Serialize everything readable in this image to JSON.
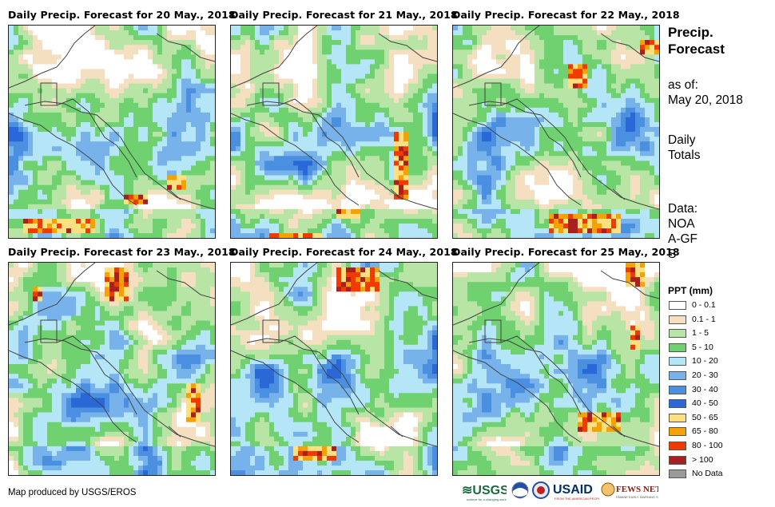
{
  "panels": [
    {
      "title": "Daily Precip. Forecast for 20 May., 2018",
      "seed": 11,
      "hot": [
        [
          0.05,
          0.9,
          0.35,
          0.06
        ],
        [
          0.55,
          0.78,
          0.12,
          0.05
        ],
        [
          0.75,
          0.7,
          0.1,
          0.06
        ]
      ]
    },
    {
      "title": "Daily Precip. Forecast for 21 May., 2018",
      "seed": 23,
      "hot": [
        [
          0.18,
          0.96,
          0.25,
          0.05
        ],
        [
          0.78,
          0.5,
          0.06,
          0.3
        ],
        [
          0.5,
          0.85,
          0.12,
          0.05
        ]
      ]
    },
    {
      "title": "Daily Precip. Forecast for 22 May., 2018",
      "seed": 37,
      "hot": [
        [
          0.45,
          0.88,
          0.35,
          0.08
        ],
        [
          0.55,
          0.18,
          0.1,
          0.1
        ],
        [
          0.9,
          0.06,
          0.08,
          0.06
        ]
      ]
    },
    {
      "title": "Daily Precip. Forecast for 23 May., 2018",
      "seed": 41,
      "hot": [
        [
          0.45,
          0.02,
          0.12,
          0.15
        ],
        [
          0.85,
          0.55,
          0.08,
          0.18
        ],
        [
          0.1,
          0.1,
          0.05,
          0.08
        ]
      ]
    },
    {
      "title": "Daily Precip. Forecast for 24 May., 2018",
      "seed": 53,
      "hot": [
        [
          0.5,
          0.02,
          0.2,
          0.1
        ],
        [
          0.3,
          0.85,
          0.2,
          0.08
        ],
        [
          0.05,
          0.98,
          0.12,
          0.03
        ]
      ]
    },
    {
      "title": "Daily Precip. Forecast for 25 May., 2018",
      "seed": 67,
      "hot": [
        [
          0.82,
          0.0,
          0.1,
          0.1
        ],
        [
          0.85,
          0.28,
          0.05,
          0.12
        ],
        [
          0.6,
          0.7,
          0.2,
          0.08
        ]
      ]
    }
  ],
  "side": {
    "title": "Precip. Forecast",
    "asof_label": "as of:",
    "asof_date": "May 20, 2018",
    "totals": "Daily Totals",
    "data_label": "Data:",
    "data_src": "NOAA-GFS"
  },
  "legend": {
    "title": "PPT (mm)",
    "items": [
      {
        "label": "0 - 0.1",
        "color": "#ffffff"
      },
      {
        "label": "0.1 - 1",
        "color": "#f5dfc1"
      },
      {
        "label": "1 - 5",
        "color": "#b8e4a5"
      },
      {
        "label": "5 - 10",
        "color": "#6fd16f"
      },
      {
        "label": "10 - 20",
        "color": "#b5e6f7"
      },
      {
        "label": "20 - 30",
        "color": "#77b2ea"
      },
      {
        "label": "30 - 40",
        "color": "#4a8fe0"
      },
      {
        "label": "40 - 50",
        "color": "#2a68d8"
      },
      {
        "label": "50 - 65",
        "color": "#ffe080"
      },
      {
        "label": "65 - 80",
        "color": "#f5a100"
      },
      {
        "label": "80 - 100",
        "color": "#f03a00"
      },
      {
        "label": "> 100",
        "color": "#a82020"
      },
      {
        "label": "No Data",
        "color": "#9a9a9a"
      }
    ]
  },
  "credit": "Map produced by USGS/EROS",
  "logos": {
    "usgs": "USGS",
    "usaid": "USAID",
    "fewsnet": "FEWS NET"
  }
}
